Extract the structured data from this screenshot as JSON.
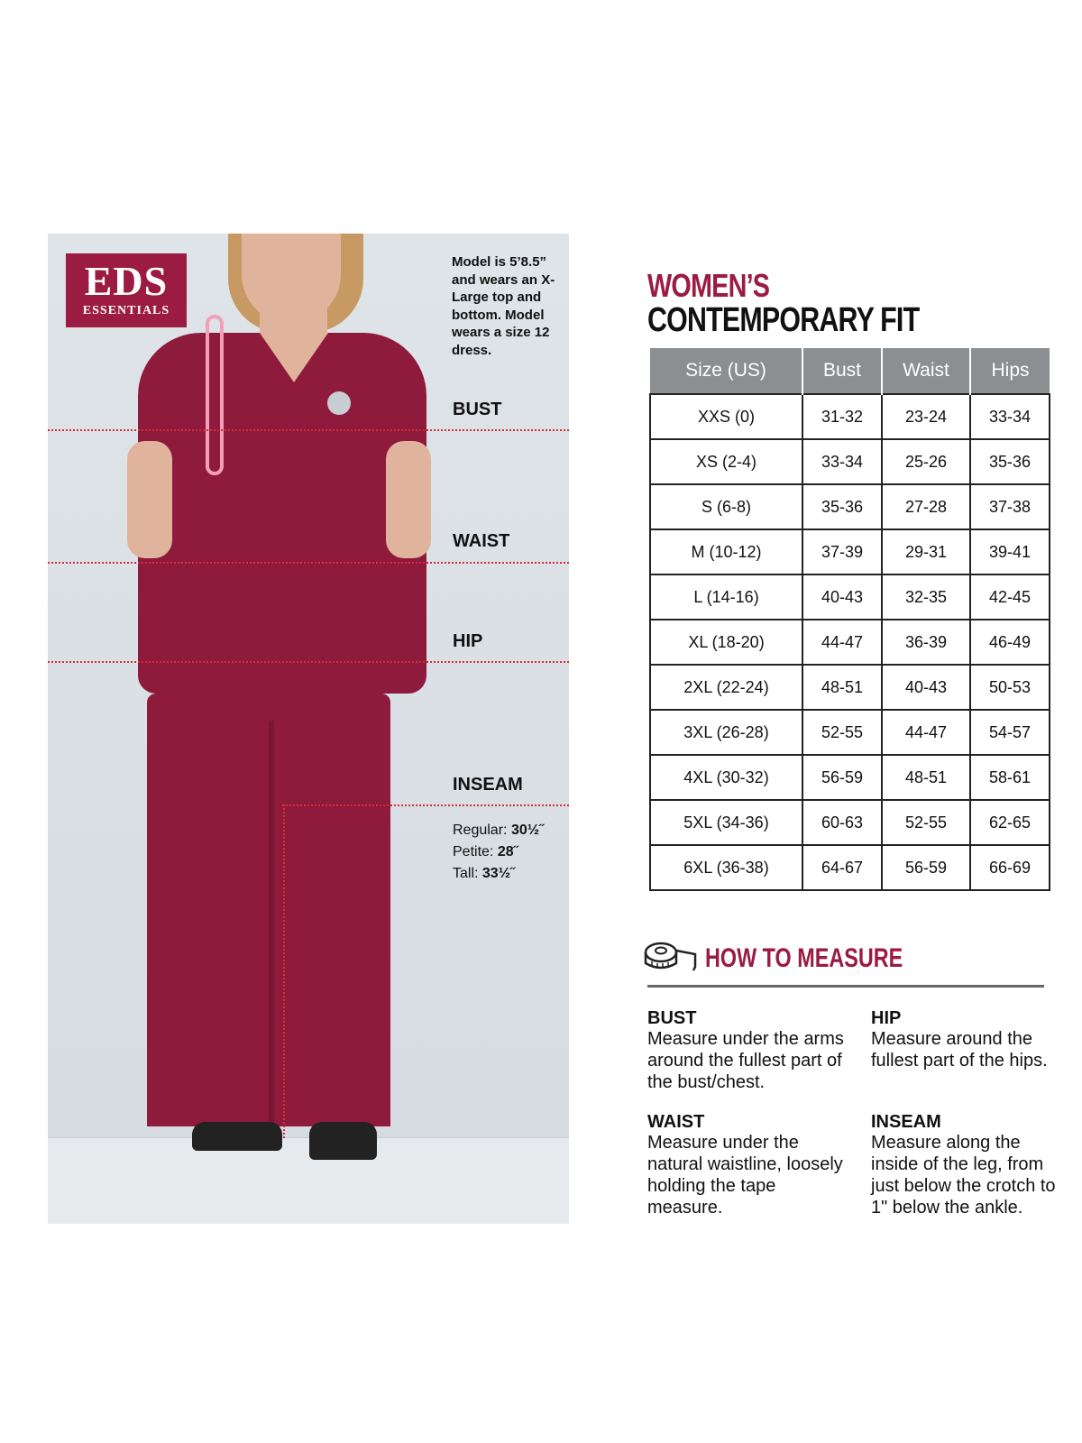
{
  "brand": {
    "logo_text": "EDS",
    "logo_sub": "ESSENTIALS",
    "color": "#9b1b42"
  },
  "model_note": "Model is 5’8.5” and wears an X-Large top and bottom. Model wears a size 12 dress.",
  "measure_labels": {
    "bust": "BUST",
    "waist": "WAIST",
    "hip": "HIP",
    "inseam": "INSEAM"
  },
  "inseam": [
    {
      "label": "Regular:",
      "value": "30½˝"
    },
    {
      "label": "Petite:",
      "value": "28˝"
    },
    {
      "label": "Tall:",
      "value": "33½˝"
    }
  ],
  "title": {
    "line1": "WOMEN’S",
    "line2": "CONTEMPORARY FIT"
  },
  "size_table": {
    "headers": [
      "Size (US)",
      "Bust",
      "Waist",
      "Hips"
    ],
    "rows": [
      [
        "XXS (0)",
        "31-32",
        "23-24",
        "33-34"
      ],
      [
        "XS (2-4)",
        "33-34",
        "25-26",
        "35-36"
      ],
      [
        "S (6-8)",
        "35-36",
        "27-28",
        "37-38"
      ],
      [
        "M (10-12)",
        "37-39",
        "29-31",
        "39-41"
      ],
      [
        "L (14-16)",
        "40-43",
        "32-35",
        "42-45"
      ],
      [
        "XL (18-20)",
        "44-47",
        "36-39",
        "46-49"
      ],
      [
        "2XL (22-24)",
        "48-51",
        "40-43",
        "50-53"
      ],
      [
        "3XL (26-28)",
        "52-55",
        "44-47",
        "54-57"
      ],
      [
        "4XL (30-32)",
        "56-59",
        "48-51",
        "58-61"
      ],
      [
        "5XL (34-36)",
        "60-63",
        "52-55",
        "62-65"
      ],
      [
        "6XL (36-38)",
        "64-67",
        "56-59",
        "66-69"
      ]
    ]
  },
  "how_to_measure": {
    "icon": "tape-measure-icon",
    "heading": "HOW TO MEASURE",
    "sections": [
      {
        "title": "BUST",
        "text": "Measure under the arms around the fullest part of the bust/chest."
      },
      {
        "title": "HIP",
        "text": "Measure around the fullest part of the hips."
      },
      {
        "title": "WAIST",
        "text": "Measure under the natural waistline, loosely holding the tape measure."
      },
      {
        "title": "INSEAM",
        "text": "Measure along the inside of the leg, from just below the crotch to 1\" below the ankle."
      }
    ]
  }
}
